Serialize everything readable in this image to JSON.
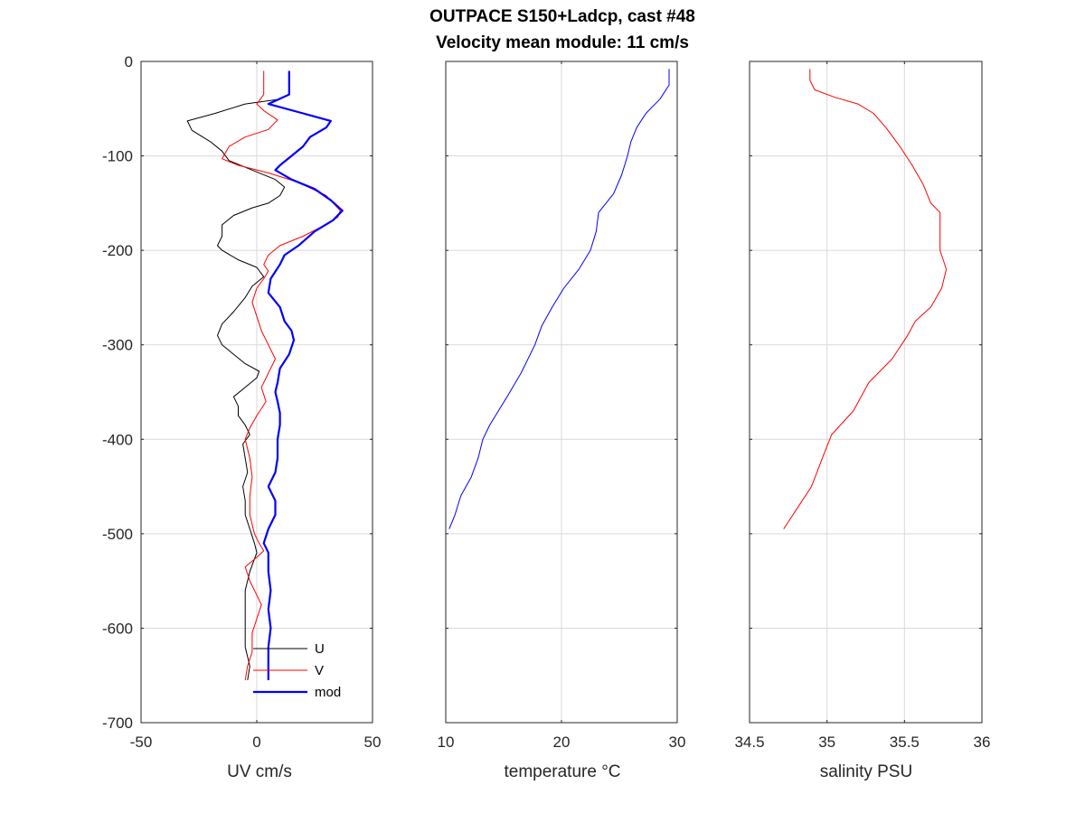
{
  "chart_data": [
    {
      "type": "line",
      "title": [
        "OUTPACE S150+Ladcp, cast #48",
        "Velocity mean module:  11 cm/s"
      ],
      "xlabel": "UV cm/s",
      "ylabel": "",
      "xlim": [
        -50,
        50
      ],
      "ylim": [
        -700,
        0
      ],
      "xticks": [
        -50,
        0,
        50
      ],
      "xtick_labels": [
        "-50",
        "0",
        "50"
      ],
      "yticks": [
        0,
        -100,
        -200,
        -300,
        -400,
        -500,
        -600,
        -700
      ],
      "ytick_labels": [
        "0",
        "-100",
        "-200",
        "-300",
        "-400",
        "-500",
        "-600",
        "-700"
      ],
      "grid": true,
      "legend": {
        "placement": "bottom-right",
        "entries": [
          "U",
          "V",
          "mod"
        ]
      },
      "series": [
        {
          "name": "U",
          "color": "#000000",
          "stroke_width": 1,
          "points": [
            [
              14,
              -10
            ],
            [
              14,
              -35
            ],
            [
              10,
              -40
            ],
            [
              -5,
              -45
            ],
            [
              -18,
              -55
            ],
            [
              -30,
              -63
            ],
            [
              -28,
              -73
            ],
            [
              -20,
              -85
            ],
            [
              -15,
              -95
            ],
            [
              -12,
              -105
            ],
            [
              -2,
              -115
            ],
            [
              8,
              -125
            ],
            [
              12,
              -133
            ],
            [
              10,
              -142
            ],
            [
              5,
              -150
            ],
            [
              -2,
              -155
            ],
            [
              -10,
              -163
            ],
            [
              -15,
              -173
            ],
            [
              -15,
              -185
            ],
            [
              -17,
              -195
            ],
            [
              -15,
              -200
            ],
            [
              -8,
              -210
            ],
            [
              0,
              -218
            ],
            [
              3,
              -228
            ],
            [
              -2,
              -238
            ],
            [
              -5,
              -250
            ],
            [
              -10,
              -265
            ],
            [
              -15,
              -278
            ],
            [
              -17,
              -290
            ],
            [
              -15,
              -300
            ],
            [
              -10,
              -310
            ],
            [
              -5,
              -320
            ],
            [
              1,
              -328
            ],
            [
              0,
              -335
            ],
            [
              -5,
              -345
            ],
            [
              -10,
              -355
            ],
            [
              -8,
              -365
            ],
            [
              -8,
              -375
            ],
            [
              -5,
              -385
            ],
            [
              -3,
              -395
            ],
            [
              -6,
              -405
            ],
            [
              -5,
              -420
            ],
            [
              -4,
              -435
            ],
            [
              -6,
              -450
            ],
            [
              -5,
              -465
            ],
            [
              -5,
              -480
            ],
            [
              -3,
              -495
            ],
            [
              -1,
              -510
            ],
            [
              0,
              -520
            ],
            [
              -3,
              -540
            ],
            [
              -5,
              -560
            ],
            [
              -5,
              -580
            ],
            [
              -5,
              -600
            ],
            [
              -5,
              -620
            ],
            [
              -3,
              -640
            ],
            [
              -4,
              -655
            ]
          ]
        },
        {
          "name": "V",
          "color": "#ff0000",
          "stroke_width": 1,
          "points": [
            [
              3,
              -10
            ],
            [
              3,
              -20
            ],
            [
              3,
              -35
            ],
            [
              0,
              -45
            ],
            [
              3,
              -52
            ],
            [
              9,
              -62
            ],
            [
              5,
              -72
            ],
            [
              -5,
              -80
            ],
            [
              -12,
              -90
            ],
            [
              -15,
              -103
            ],
            [
              -8,
              -110
            ],
            [
              5,
              -118
            ],
            [
              18,
              -128
            ],
            [
              30,
              -142
            ],
            [
              36,
              -158
            ],
            [
              35,
              -165
            ],
            [
              28,
              -175
            ],
            [
              20,
              -185
            ],
            [
              10,
              -195
            ],
            [
              5,
              -205
            ],
            [
              3,
              -215
            ],
            [
              5,
              -222
            ],
            [
              3,
              -230
            ],
            [
              0,
              -240
            ],
            [
              -2,
              -255
            ],
            [
              0,
              -270
            ],
            [
              2,
              -285
            ],
            [
              5,
              -300
            ],
            [
              8,
              -315
            ],
            [
              5,
              -330
            ],
            [
              2,
              -345
            ],
            [
              4,
              -360
            ],
            [
              0,
              -375
            ],
            [
              -3,
              -388
            ],
            [
              -5,
              -400
            ],
            [
              -3,
              -420
            ],
            [
              -2,
              -440
            ],
            [
              -3,
              -460
            ],
            [
              -3,
              -480
            ],
            [
              -1,
              -500
            ],
            [
              1,
              -510
            ],
            [
              3,
              -518
            ],
            [
              0,
              -525
            ],
            [
              -5,
              -535
            ],
            [
              -3,
              -550
            ],
            [
              0,
              -565
            ],
            [
              2,
              -575
            ],
            [
              0,
              -590
            ],
            [
              -2,
              -605
            ],
            [
              -2,
              -625
            ],
            [
              -4,
              -640
            ],
            [
              -5,
              -655
            ]
          ]
        },
        {
          "name": "mod",
          "color": "#0000ff",
          "stroke_width": 2.2,
          "points": [
            [
              14,
              -10
            ],
            [
              14,
              -35
            ],
            [
              5,
              -45
            ],
            [
              20,
              -55
            ],
            [
              32,
              -63
            ],
            [
              30,
              -70
            ],
            [
              23,
              -80
            ],
            [
              20,
              -90
            ],
            [
              15,
              -100
            ],
            [
              10,
              -110
            ],
            [
              8,
              -115
            ],
            [
              15,
              -125
            ],
            [
              25,
              -135
            ],
            [
              32,
              -147
            ],
            [
              37,
              -158
            ],
            [
              33,
              -168
            ],
            [
              25,
              -180
            ],
            [
              18,
              -195
            ],
            [
              12,
              -205
            ],
            [
              10,
              -215
            ],
            [
              6,
              -230
            ],
            [
              5,
              -245
            ],
            [
              10,
              -260
            ],
            [
              12,
              -275
            ],
            [
              15,
              -285
            ],
            [
              16,
              -295
            ],
            [
              14,
              -310
            ],
            [
              10,
              -325
            ],
            [
              9,
              -340
            ],
            [
              8,
              -350
            ],
            [
              9,
              -360
            ],
            [
              10,
              -372
            ],
            [
              10,
              -385
            ],
            [
              9,
              -400
            ],
            [
              9,
              -420
            ],
            [
              8,
              -435
            ],
            [
              5,
              -450
            ],
            [
              8,
              -465
            ],
            [
              8,
              -480
            ],
            [
              5,
              -495
            ],
            [
              3,
              -510
            ],
            [
              5,
              -520
            ],
            [
              5,
              -540
            ],
            [
              6,
              -560
            ],
            [
              5,
              -580
            ],
            [
              6,
              -600
            ],
            [
              5,
              -620
            ],
            [
              5,
              -640
            ],
            [
              5,
              -655
            ]
          ]
        }
      ]
    },
    {
      "type": "line",
      "title": "",
      "xlabel": "temperature °C",
      "ylabel": "",
      "xlim": [
        10,
        30
      ],
      "ylim": [
        -700,
        0
      ],
      "xticks": [
        10,
        20,
        30
      ],
      "xtick_labels": [
        "10",
        "20",
        "30"
      ],
      "yticks": [
        0,
        -100,
        -200,
        -300,
        -400,
        -500,
        -600,
        -700
      ],
      "grid": true,
      "series": [
        {
          "color": "#0000ff",
          "stroke_width": 1,
          "points": [
            [
              29.3,
              -8
            ],
            [
              29.3,
              -25
            ],
            [
              28.5,
              -40
            ],
            [
              27.3,
              -55
            ],
            [
              26.5,
              -70
            ],
            [
              26,
              -85
            ],
            [
              25.7,
              -100
            ],
            [
              25.2,
              -120
            ],
            [
              24.5,
              -140
            ],
            [
              23.2,
              -160
            ],
            [
              23,
              -180
            ],
            [
              22.5,
              -200
            ],
            [
              21.5,
              -220
            ],
            [
              20.2,
              -240
            ],
            [
              19.2,
              -260
            ],
            [
              18.3,
              -280
            ],
            [
              17.7,
              -300
            ],
            [
              16.5,
              -330
            ],
            [
              15.3,
              -355
            ],
            [
              13.8,
              -385
            ],
            [
              13.2,
              -400
            ],
            [
              12.8,
              -420
            ],
            [
              12.2,
              -440
            ],
            [
              11.3,
              -460
            ],
            [
              10.8,
              -480
            ],
            [
              10.3,
              -495
            ]
          ]
        }
      ]
    },
    {
      "type": "line",
      "title": "",
      "xlabel": "salinity PSU",
      "ylabel": "",
      "xlim": [
        34.5,
        36
      ],
      "ylim": [
        -700,
        0
      ],
      "xticks": [
        34.5,
        35,
        35.5,
        36
      ],
      "xtick_labels": [
        "34.5",
        "35",
        "35.5",
        "36"
      ],
      "yticks": [
        0,
        -100,
        -200,
        -300,
        -400,
        -500,
        -600,
        -700
      ],
      "grid": true,
      "series": [
        {
          "color": "#ff0000",
          "stroke_width": 1,
          "points": [
            [
              34.89,
              -8
            ],
            [
              34.89,
              -20
            ],
            [
              34.92,
              -30
            ],
            [
              35.05,
              -38
            ],
            [
              35.2,
              -45
            ],
            [
              35.3,
              -55
            ],
            [
              35.38,
              -70
            ],
            [
              35.47,
              -90
            ],
            [
              35.55,
              -110
            ],
            [
              35.62,
              -130
            ],
            [
              35.67,
              -150
            ],
            [
              35.73,
              -160
            ],
            [
              35.73,
              -180
            ],
            [
              35.73,
              -200
            ],
            [
              35.77,
              -220
            ],
            [
              35.74,
              -240
            ],
            [
              35.67,
              -260
            ],
            [
              35.57,
              -275
            ],
            [
              35.52,
              -290
            ],
            [
              35.42,
              -315
            ],
            [
              35.27,
              -340
            ],
            [
              35.17,
              -370
            ],
            [
              35.03,
              -395
            ],
            [
              34.97,
              -420
            ],
            [
              34.9,
              -450
            ],
            [
              34.8,
              -475
            ],
            [
              34.72,
              -495
            ]
          ]
        }
      ]
    }
  ]
}
